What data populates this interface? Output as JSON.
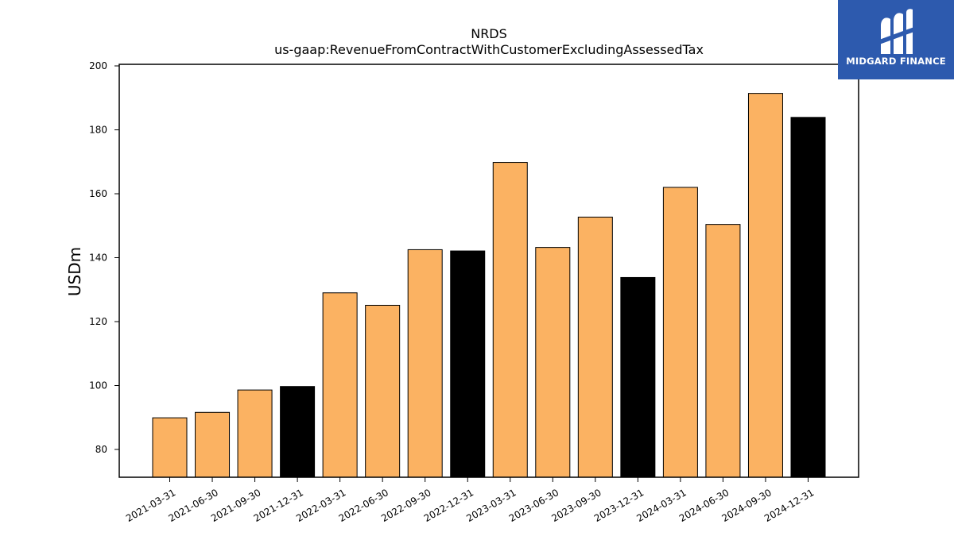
{
  "logo": {
    "text": "MIDGARD FINANCE",
    "background_color": "#2d5aae",
    "icon": "midgard-m-logo-icon"
  },
  "chart_data": {
    "type": "bar",
    "title": "NRDS",
    "subtitle": "us-gaap:RevenueFromContractWithCustomerExcludingAssessedTax",
    "xlabel": "",
    "ylabel": "USDm",
    "ylim": [
      71.3,
      200.5
    ],
    "yticks": [
      80,
      100,
      120,
      140,
      160,
      180,
      200
    ],
    "grid": false,
    "categories": [
      "2021-03-31",
      "2021-06-30",
      "2021-09-30",
      "2021-12-31",
      "2022-03-31",
      "2022-06-30",
      "2022-09-30",
      "2022-12-31",
      "2023-03-31",
      "2023-06-30",
      "2023-09-30",
      "2023-12-31",
      "2024-03-31",
      "2024-06-30",
      "2024-09-30",
      "2024-12-31"
    ],
    "values": [
      89.9,
      91.6,
      98.6,
      99.7,
      129.0,
      125.1,
      142.5,
      142.1,
      169.8,
      143.2,
      152.7,
      133.8,
      162.0,
      150.4,
      191.4,
      183.9
    ],
    "colors": [
      "#fbb262",
      "#fbb262",
      "#fbb262",
      "#000000",
      "#fbb262",
      "#fbb262",
      "#fbb262",
      "#000000",
      "#fbb262",
      "#fbb262",
      "#fbb262",
      "#000000",
      "#fbb262",
      "#fbb262",
      "#fbb262",
      "#000000"
    ],
    "bar_edge_color": "#000000"
  }
}
